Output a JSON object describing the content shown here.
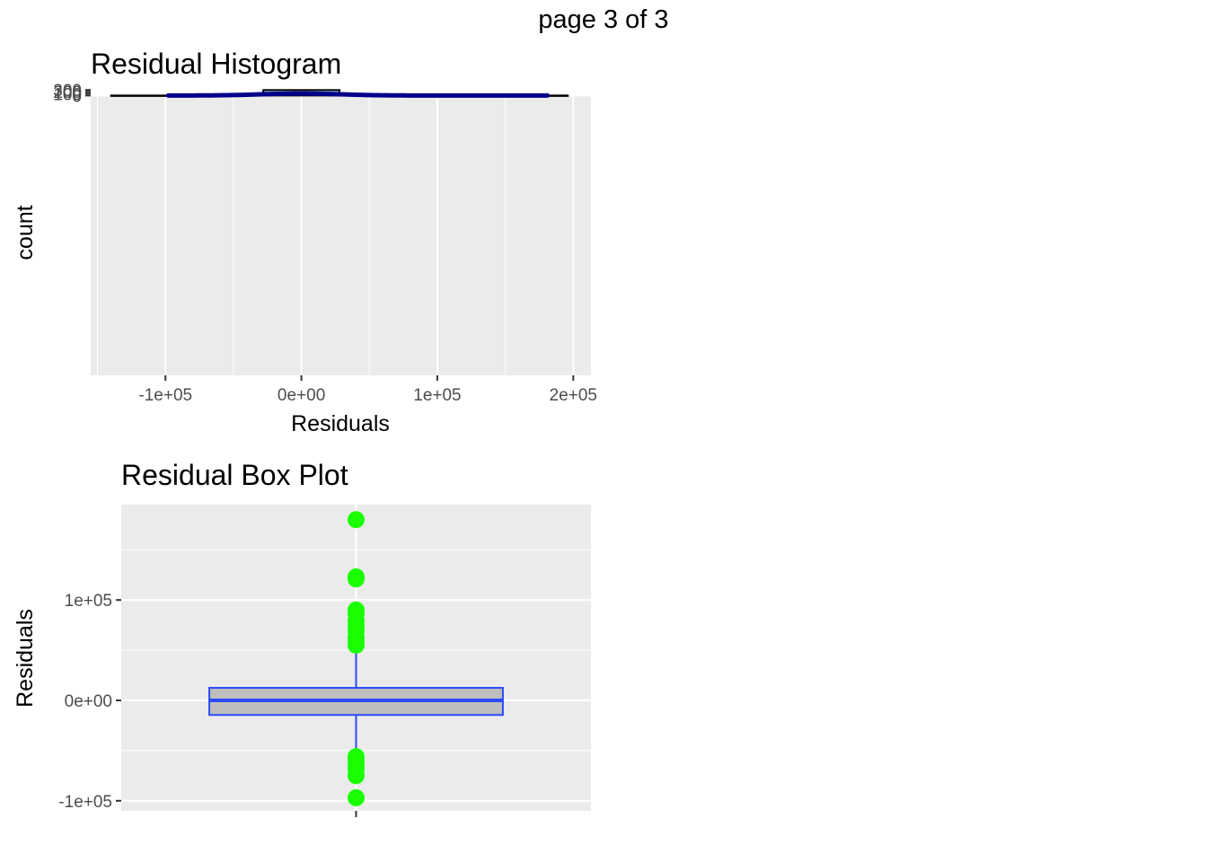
{
  "page": {
    "title": "page 3 of 3"
  },
  "chart_data": [
    {
      "type": "histogram",
      "title": "Residual Histogram",
      "xlabel": "Residuals",
      "ylabel": "count",
      "xlim": [
        -155000,
        213000
      ],
      "ylim": [
        -15000,
        307
      ],
      "x_ticks": [
        -100000,
        0,
        100000,
        200000
      ],
      "x_tick_labels": [
        "-1e+05",
        "0e+00",
        "1e+05",
        "2e+05"
      ],
      "y_ticks": [
        0,
        100,
        200,
        300
      ],
      "y_tick_labels": [
        "0",
        "100",
        "200",
        "300"
      ],
      "grid": true,
      "bin_width": 56000,
      "bins": [
        {
          "x0": -140000,
          "x1": -84000,
          "count": 1
        },
        {
          "x0": -84000,
          "x1": -28000,
          "count": 51
        },
        {
          "x0": -28000,
          "x1": 28000,
          "count": 292
        },
        {
          "x0": 28000,
          "x1": 84000,
          "count": 37
        },
        {
          "x0": 84000,
          "x1": 140000,
          "count": 4
        },
        {
          "x0": 140000,
          "x1": 196000,
          "count": 1
        }
      ],
      "density_curve": {
        "mean": 0,
        "sd": 29000,
        "peak": 108,
        "from": -98000,
        "to": 181000,
        "color": "#00008B"
      },
      "bar_fill": "#A1D1E3",
      "bar_outline": "#000000"
    },
    {
      "type": "boxplot",
      "title": "Residual Box Plot",
      "ylabel": "Residuals",
      "ylim": [
        -110000,
        195000
      ],
      "y_ticks": [
        -100000,
        0,
        100000
      ],
      "y_tick_labels": [
        "-1e+05",
        "0e+00",
        "1e+05"
      ],
      "grid": true,
      "box": {
        "q1": -14500,
        "median": 0,
        "q3": 12500,
        "whisker_low": -52000,
        "whisker_high": 52000
      },
      "outliers": [
        180000,
        123000,
        121000,
        90000,
        86000,
        79000,
        74000,
        69000,
        63000,
        59000,
        55000,
        -56000,
        -60000,
        -64000,
        -69000,
        -75000,
        -97000
      ],
      "box_color": "#2B4BFF",
      "box_fill": "#BEBEBE",
      "outlier_color": "#1AFF00"
    }
  ]
}
